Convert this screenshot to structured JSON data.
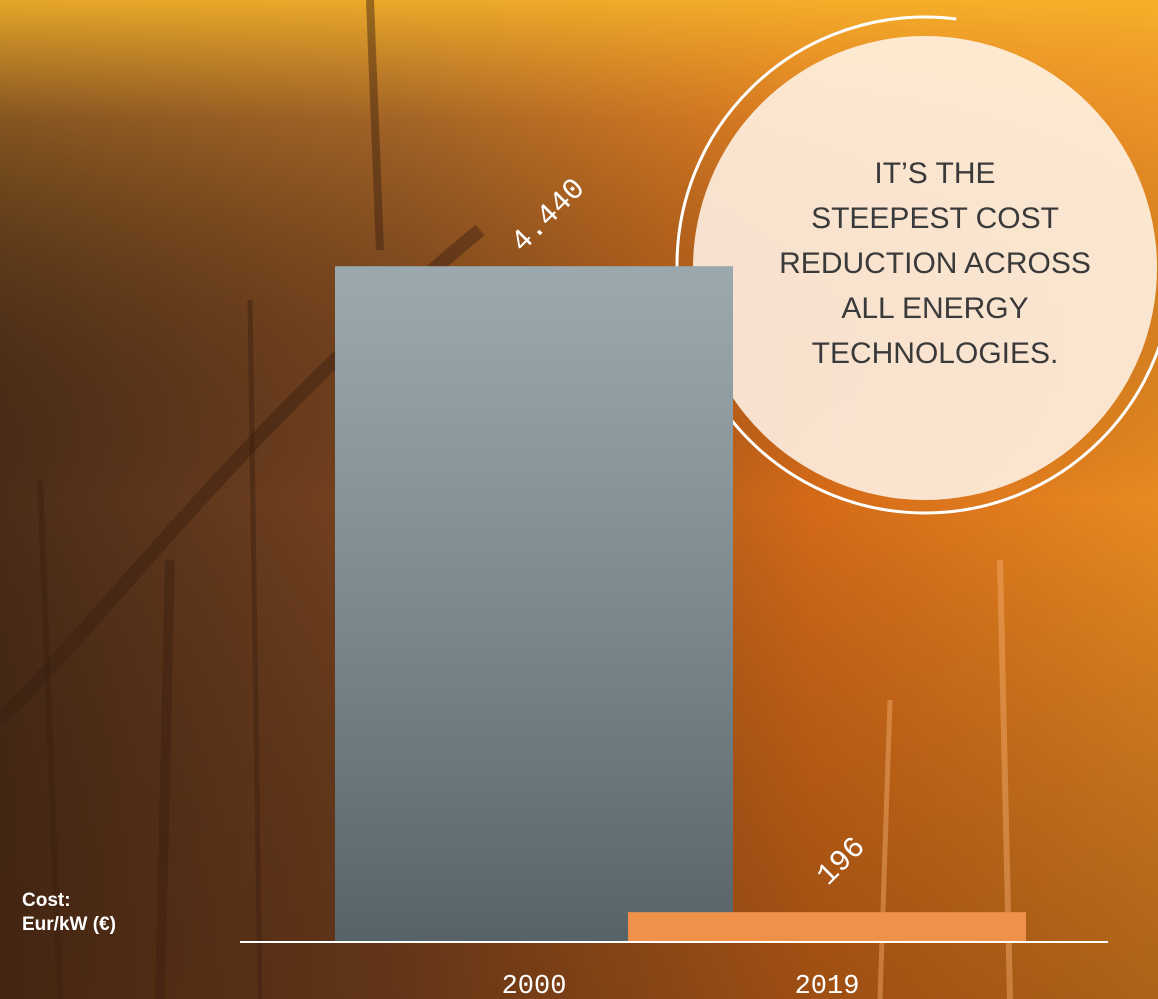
{
  "chart_data": {
    "type": "bar",
    "categories": [
      "2000",
      "2019"
    ],
    "values": [
      4440,
      196
    ],
    "value_labels": [
      "4.440",
      "196"
    ],
    "colors": [
      "#7a8d94",
      "#f0914a"
    ],
    "ylabel": "Cost:\nEur/kW (€)",
    "annotation": "IT’S THE\nSTEEPEST COST\nREDUCTION ACROSS\nALL ENERGY\nTECHNOLOGIES.",
    "ylim": [
      0,
      5000
    ]
  }
}
